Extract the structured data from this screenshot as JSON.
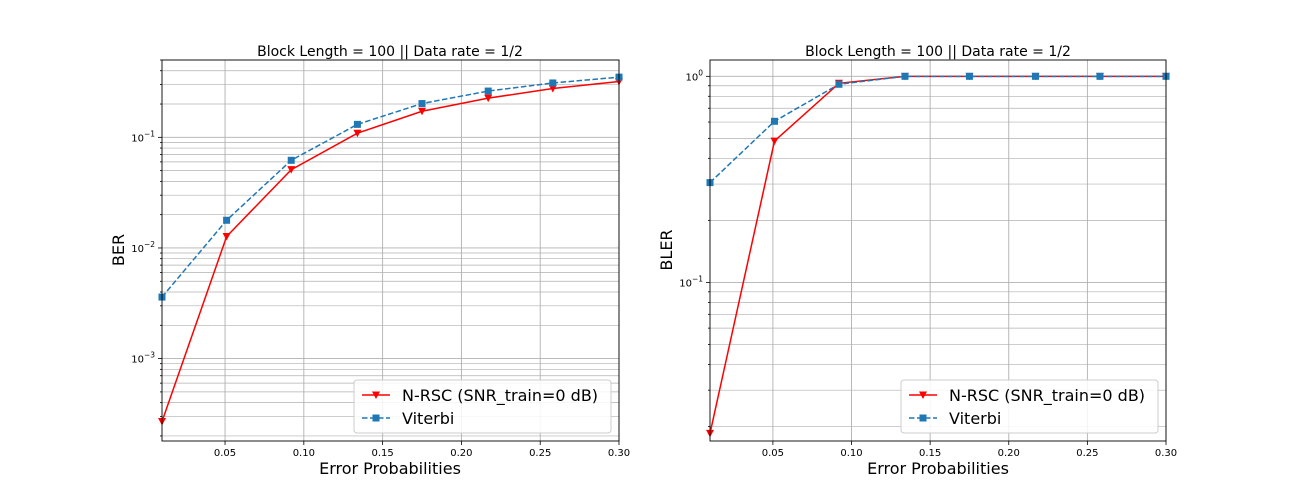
{
  "chart_data": [
    {
      "type": "line",
      "title": "Block Length = 100 || Data rate = 1/2",
      "xlabel": "Error Probabilities",
      "ylabel": "BER",
      "yscale": "log",
      "xlim": [
        0.01,
        0.3
      ],
      "ylim": [
        0.00018,
        0.5
      ],
      "xticks": [
        0.05,
        0.1,
        0.15,
        0.2,
        0.25,
        0.3
      ],
      "xtick_labels": [
        "0.05",
        "0.10",
        "0.15",
        "0.20",
        "0.25",
        "0.30"
      ],
      "ytick_labels": [
        {
          "value": 0.001,
          "base": "10",
          "exp": "−3"
        },
        {
          "value": 0.01,
          "base": "10",
          "exp": "−2"
        },
        {
          "value": 0.1,
          "base": "10",
          "exp": "−1"
        }
      ],
      "grid": true,
      "legend_position": "lower-right",
      "x": [
        0.01,
        0.051,
        0.092,
        0.134,
        0.175,
        0.217,
        0.258,
        0.3
      ],
      "series": [
        {
          "name": "N-RSC (SNR_train=0 dB)",
          "color": "#ff0000",
          "marker": "triangle-down",
          "linestyle": "solid",
          "values": [
            0.00027,
            0.0127,
            0.051,
            0.109,
            0.172,
            0.226,
            0.276,
            0.32
          ]
        },
        {
          "name": "Viterbi",
          "color": "#1f77b4",
          "marker": "square",
          "linestyle": "dashed",
          "values": [
            0.0036,
            0.0178,
            0.062,
            0.131,
            0.202,
            0.262,
            0.31,
            0.35
          ]
        }
      ]
    },
    {
      "type": "line",
      "title": "Block Length = 100 || Data rate = 1/2",
      "xlabel": "Error Probabilities",
      "ylabel": "BLER",
      "yscale": "log",
      "xlim": [
        0.01,
        0.3
      ],
      "ylim": [
        0.017,
        1.2
      ],
      "xticks": [
        0.05,
        0.1,
        0.15,
        0.2,
        0.25,
        0.3
      ],
      "xtick_labels": [
        "0.05",
        "0.10",
        "0.15",
        "0.20",
        "0.25",
        "0.30"
      ],
      "ytick_labels": [
        {
          "value": 0.1,
          "base": "10",
          "exp": "−1"
        },
        {
          "value": 1,
          "base": "10",
          "exp": "0"
        }
      ],
      "grid": true,
      "legend_position": "lower-right",
      "x": [
        0.01,
        0.051,
        0.092,
        0.134,
        0.175,
        0.217,
        0.258,
        0.3
      ],
      "series": [
        {
          "name": "N-RSC (SNR_train=0 dB)",
          "color": "#ff0000",
          "marker": "triangle-down",
          "linestyle": "solid",
          "values": [
            0.0185,
            0.485,
            0.925,
            1.0,
            1.0,
            1.0,
            1.0,
            1.0
          ]
        },
        {
          "name": "Viterbi",
          "color": "#1f77b4",
          "marker": "square",
          "linestyle": "dashed",
          "values": [
            0.305,
            0.605,
            0.915,
            1.0,
            1.0,
            1.0,
            1.0,
            1.0
          ]
        }
      ]
    }
  ]
}
